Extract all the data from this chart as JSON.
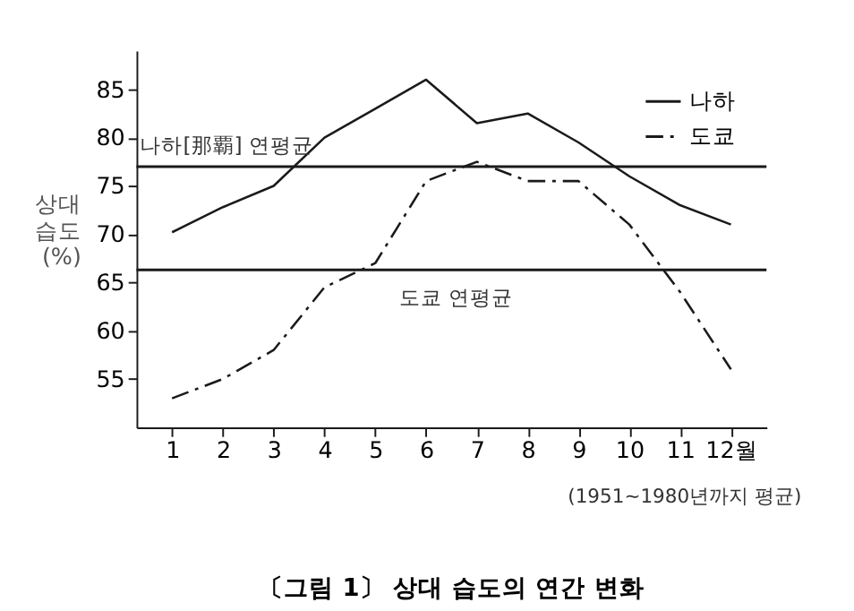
{
  "chart_data": {
    "type": "line",
    "title": "〔그림 1〕 상대 습도의 연간 변화",
    "ylabel": "상대 습도 (%)",
    "categories": [
      "1",
      "2",
      "3",
      "4",
      "5",
      "6",
      "7",
      "8",
      "9",
      "10",
      "11",
      "12월"
    ],
    "series": [
      {
        "name": "나하",
        "color": "#1a1a1a",
        "line_style": "solid",
        "values": [
          70.2,
          72.8,
          75,
          80,
          83,
          86,
          81.5,
          82.5,
          79.5,
          76,
          73,
          71
        ]
      },
      {
        "name": "도쿄",
        "color": "#1a1a1a",
        "line_style": "dashed",
        "values": [
          53,
          55,
          58,
          64.5,
          67,
          75.5,
          77.5,
          75.5,
          75.5,
          71,
          64,
          56
        ]
      }
    ],
    "ylim": [
      50,
      89
    ],
    "yticks": [
      55,
      60,
      65,
      70,
      75,
      80,
      85
    ],
    "ref_lines": [
      {
        "axis": "y",
        "value": 77,
        "label": "나하[那覇] 연평균"
      },
      {
        "axis": "y",
        "value": 66.3,
        "label": "도쿄 연평균"
      }
    ],
    "annotations": [
      "(1951~1980년까지 평균)"
    ],
    "grid": false,
    "legend": "top right",
    "marker": "none"
  }
}
